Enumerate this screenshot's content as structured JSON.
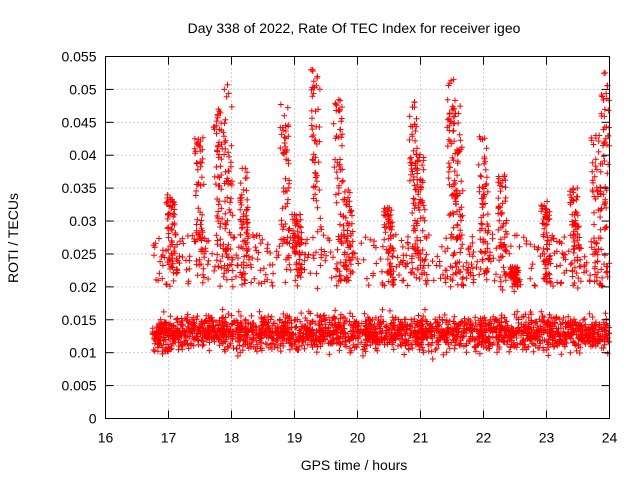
{
  "chart_data": {
    "type": "scatter",
    "title": "Day 338 of 2022, Rate Of TEC Index for receiver igeo",
    "xlabel": "GPS time / hours",
    "ylabel": "ROTI / TECUs",
    "xlim": [
      16,
      24
    ],
    "ylim": [
      0,
      0.055
    ],
    "xticks": [
      16,
      17,
      18,
      19,
      20,
      21,
      22,
      23,
      24
    ],
    "xtick_labels": [
      "16",
      "17",
      "18",
      "19",
      "20",
      "21",
      "22",
      "23",
      "24"
    ],
    "yticks": [
      0,
      0.005,
      0.01,
      0.015,
      0.02,
      0.025,
      0.03,
      0.035,
      0.04,
      0.045,
      0.05,
      0.055
    ],
    "ytick_labels": [
      "0",
      "0.005",
      "0.01",
      "0.015",
      "0.02",
      "0.025",
      "0.03",
      "0.035",
      "0.04",
      "0.045",
      "0.05",
      "0.055"
    ],
    "grid": true,
    "marker": "+",
    "color": "#ff0000",
    "series": [
      {
        "name": "ROTI",
        "x_range": [
          16.75,
          24.0
        ],
        "baseline": 0.013,
        "spread": [
          0.005,
          0.02
        ],
        "peaks": [
          [
            17.05,
            0.034
          ],
          [
            17.5,
            0.043
          ],
          [
            17.8,
            0.047
          ],
          [
            17.95,
            0.051
          ],
          [
            18.2,
            0.038
          ],
          [
            18.85,
            0.048
          ],
          [
            19.05,
            0.031
          ],
          [
            19.35,
            0.053
          ],
          [
            19.7,
            0.049
          ],
          [
            19.85,
            0.035
          ],
          [
            20.5,
            0.032
          ],
          [
            20.9,
            0.049
          ],
          [
            21.0,
            0.041
          ],
          [
            21.5,
            0.052
          ],
          [
            21.6,
            0.048
          ],
          [
            22.0,
            0.043
          ],
          [
            22.3,
            0.037
          ],
          [
            22.5,
            0.023
          ],
          [
            23.0,
            0.033
          ],
          [
            23.45,
            0.035
          ],
          [
            23.8,
            0.043
          ],
          [
            23.95,
            0.053
          ]
        ]
      }
    ]
  }
}
